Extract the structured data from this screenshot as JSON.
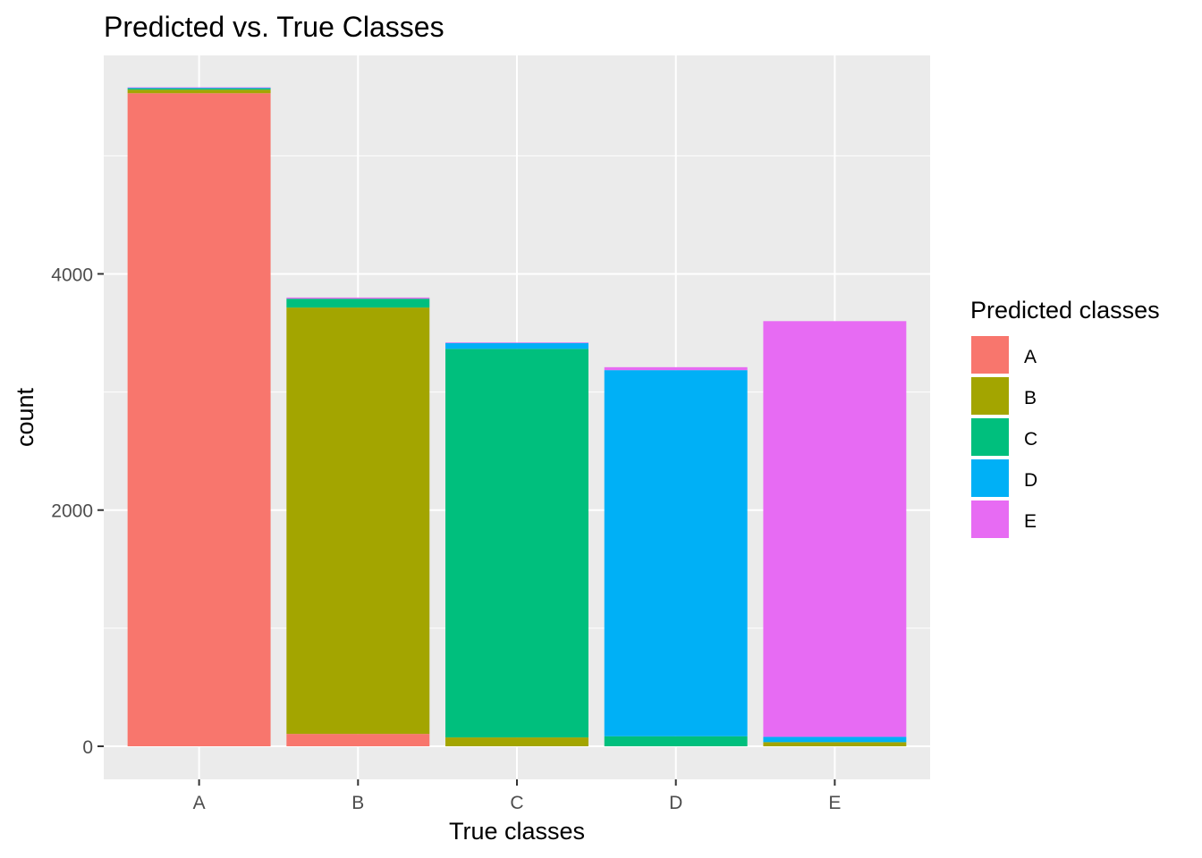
{
  "chart_data": {
    "type": "bar",
    "stacked": true,
    "title": "Predicted vs. True Classes",
    "xlabel": "True classes",
    "ylabel": "count",
    "categories": [
      "A",
      "B",
      "C",
      "D",
      "E"
    ],
    "ylim": [
      -280,
      5850
    ],
    "yticks": [
      0,
      2000,
      4000
    ],
    "grid": true,
    "legend": {
      "title": "Predicted classes",
      "placement": "right",
      "entries": [
        "A",
        "B",
        "C",
        "D",
        "E"
      ]
    },
    "series": [
      {
        "name": "A",
        "color": "#F8766D",
        "values": [
          5530,
          105,
          0,
          0,
          0
        ]
      },
      {
        "name": "B",
        "color": "#A3A500",
        "values": [
          30,
          3610,
          75,
          0,
          35
        ]
      },
      {
        "name": "C",
        "color": "#00BF7D",
        "values": [
          10,
          75,
          3290,
          85,
          0
        ]
      },
      {
        "name": "D",
        "color": "#00B0F6",
        "values": [
          5,
          0,
          50,
          3100,
          45
        ]
      },
      {
        "name": "E",
        "color": "#E76BF3",
        "values": [
          5,
          10,
          5,
          25,
          3520
        ]
      }
    ]
  }
}
